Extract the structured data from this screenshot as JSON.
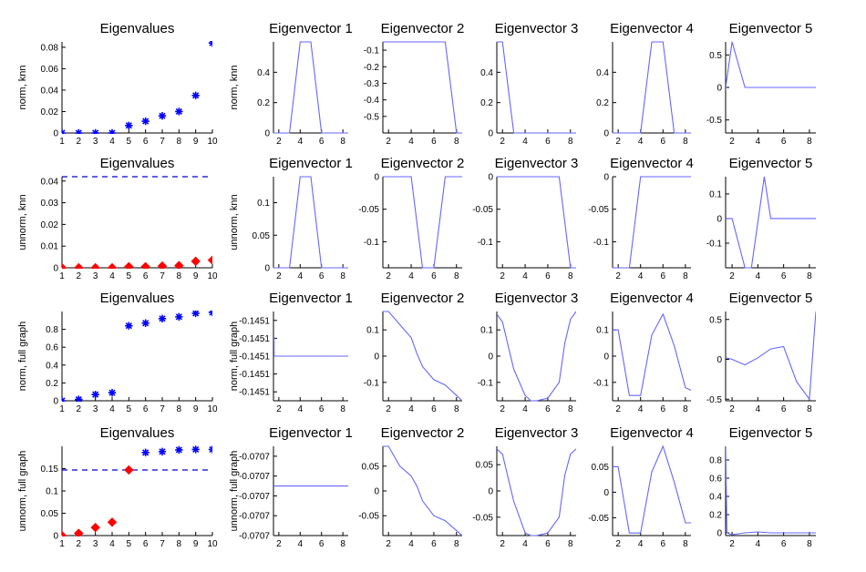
{
  "colors": {
    "eigen_marker": "#0000ff",
    "unnorm_marker": "#ff0000",
    "vector_line": "#6666ff",
    "dashed": "#0000cc",
    "axis": "#000000"
  },
  "chart_data": [
    {
      "type": "scatter",
      "title": "Eigenvalues",
      "ylabel": "norm, knn",
      "xlim": [
        1,
        10
      ],
      "ylim": [
        0,
        0.085
      ],
      "xticks": [
        1,
        2,
        3,
        4,
        5,
        6,
        7,
        8,
        9,
        10
      ],
      "yticks": [
        0,
        0.02,
        0.04,
        0.06,
        0.08
      ],
      "yticklabels": [
        "0",
        "0.02",
        "0.04",
        "0.06",
        "0.08"
      ],
      "series": [
        {
          "marker": "star",
          "color": "blue",
          "x": [
            1,
            2,
            3,
            4,
            5,
            6,
            7,
            8,
            9,
            10
          ],
          "y": [
            0,
            0,
            0,
            0,
            0.007,
            0.011,
            0.016,
            0.02,
            0.035,
            0.084
          ]
        }
      ]
    },
    {
      "type": "line",
      "title": "Eigenvector 1",
      "ylabel": "norm, knn",
      "xlim": [
        1.5,
        8.5
      ],
      "ylim": [
        0,
        0.6
      ],
      "xticks": [
        2,
        4,
        6,
        8
      ],
      "yticks": [
        0,
        0.2,
        0.4
      ],
      "yticklabels": [
        "0",
        "0.2",
        "0.4"
      ],
      "x": [
        1,
        2,
        3,
        4,
        5,
        6,
        7,
        8,
        9,
        10
      ],
      "y": [
        0,
        0,
        0,
        0.6,
        0.6,
        0,
        0,
        0,
        0,
        0
      ]
    },
    {
      "type": "line",
      "title": "Eigenvector 2",
      "xlim": [
        1.5,
        8.5
      ],
      "ylim": [
        -0.6,
        -0.05
      ],
      "xticks": [
        2,
        4,
        6,
        8
      ],
      "yticks": [
        -0.1,
        -0.2,
        -0.3,
        -0.4,
        -0.5
      ],
      "yticklabels": [
        "-0.1",
        "-0.2",
        "-0.3",
        "-0.4",
        "-0.5"
      ],
      "x": [
        1,
        2,
        3,
        4,
        5,
        6,
        7,
        8,
        9,
        10
      ],
      "y": [
        -0.05,
        -0.05,
        -0.05,
        -0.05,
        -0.05,
        -0.05,
        -0.05,
        -0.6,
        -0.6,
        -0.6
      ]
    },
    {
      "type": "line",
      "title": "Eigenvector 3",
      "xlim": [
        1.5,
        8.5
      ],
      "ylim": [
        0,
        0.6
      ],
      "xticks": [
        2,
        4,
        6,
        8
      ],
      "yticks": [
        0,
        0.2,
        0.4
      ],
      "yticklabels": [
        "0",
        "0.2",
        "0.4"
      ],
      "x": [
        1,
        2,
        3,
        4,
        5,
        6,
        7,
        8,
        9,
        10
      ],
      "y": [
        0.6,
        0.6,
        0,
        0,
        0,
        0,
        0,
        0,
        0,
        0
      ]
    },
    {
      "type": "line",
      "title": "Eigenvector 4",
      "xlim": [
        1.5,
        8.5
      ],
      "ylim": [
        0,
        0.6
      ],
      "xticks": [
        2,
        4,
        6,
        8
      ],
      "yticks": [
        0,
        0.2,
        0.4
      ],
      "yticklabels": [
        "0",
        "0.2",
        "0.4"
      ],
      "x": [
        1,
        2,
        3,
        4,
        5,
        6,
        7,
        8,
        9,
        10
      ],
      "y": [
        0,
        0,
        0,
        0,
        0.6,
        0.6,
        0,
        0,
        0,
        0
      ]
    },
    {
      "type": "line",
      "title": "Eigenvector 5",
      "xlim": [
        1.5,
        8.5
      ],
      "ylim": [
        -0.7,
        0.7
      ],
      "xticks": [
        2,
        4,
        6,
        8
      ],
      "yticks": [
        0.5,
        0,
        -0.5
      ],
      "yticklabels": [
        "0.5",
        "0",
        "-0.5"
      ],
      "x": [
        1,
        2,
        3,
        4,
        5,
        6,
        7,
        8,
        9,
        10
      ],
      "y": [
        -0.7,
        0.7,
        0,
        0,
        0,
        0,
        0,
        0,
        0,
        0
      ]
    },
    {
      "type": "scatter",
      "title": "Eigenvalues",
      "ylabel": "unnorm, knn",
      "xlim": [
        1,
        10
      ],
      "ylim": [
        0,
        0.042
      ],
      "xticks": [
        1,
        2,
        3,
        4,
        5,
        6,
        7,
        8,
        9,
        10
      ],
      "yticks": [
        0,
        0.01,
        0.02,
        0.03,
        0.04
      ],
      "yticklabels": [
        "0",
        "0.01",
        "0.02",
        "0.03",
        "0.04"
      ],
      "hline": 0.042,
      "series": [
        {
          "marker": "diamond",
          "color": "red",
          "x": [
            1,
            2,
            3,
            4,
            5,
            6,
            7,
            8,
            9,
            10
          ],
          "y": [
            0,
            0,
            0,
            0,
            0.0005,
            0.0005,
            0.0008,
            0.001,
            0.003,
            0.0035
          ]
        }
      ]
    },
    {
      "type": "line",
      "title": "Eigenvector 1",
      "ylabel": "unnorm, knn",
      "xlim": [
        1.5,
        8.5
      ],
      "ylim": [
        0,
        0.14
      ],
      "xticks": [
        2,
        4,
        6,
        8
      ],
      "yticks": [
        0,
        0.05,
        0.1
      ],
      "yticklabels": [
        "0",
        "0.05",
        "0.1"
      ],
      "x": [
        1,
        2,
        3,
        4,
        5,
        6,
        7,
        8,
        9,
        10
      ],
      "y": [
        0,
        0,
        0,
        0.14,
        0.14,
        0,
        0,
        0,
        0,
        0
      ]
    },
    {
      "type": "line",
      "title": "Eigenvector 2",
      "xlim": [
        1.5,
        8.5
      ],
      "ylim": [
        -0.14,
        0
      ],
      "xticks": [
        2,
        4,
        6,
        8
      ],
      "yticks": [
        0,
        -0.05,
        -0.1
      ],
      "yticklabels": [
        "0",
        "-0.05",
        "-0.1"
      ],
      "x": [
        1,
        2,
        3,
        4,
        5,
        6,
        7,
        8,
        9,
        10
      ],
      "y": [
        0,
        0,
        0,
        0,
        -0.14,
        -0.14,
        0,
        0,
        0,
        0
      ]
    },
    {
      "type": "line",
      "title": "Eigenvector 3",
      "xlim": [
        1.5,
        8.5
      ],
      "ylim": [
        -0.14,
        0
      ],
      "xticks": [
        2,
        4,
        6,
        8
      ],
      "yticks": [
        0,
        -0.05,
        -0.1
      ],
      "yticklabels": [
        "0",
        "-0.05",
        "-0.1"
      ],
      "x": [
        1,
        2,
        3,
        4,
        5,
        6,
        7,
        8,
        9,
        10
      ],
      "y": [
        0,
        0,
        0,
        0,
        0,
        0,
        0,
        -0.14,
        -0.14,
        -0.14
      ]
    },
    {
      "type": "line",
      "title": "Eigenvector 4",
      "xlim": [
        1.5,
        8.5
      ],
      "ylim": [
        -0.14,
        0
      ],
      "xticks": [
        2,
        4,
        6,
        8
      ],
      "yticks": [
        0,
        -0.05,
        -0.1
      ],
      "yticklabels": [
        "0",
        "-0.05",
        "-0.1"
      ],
      "x": [
        1,
        2,
        3,
        4,
        5,
        6,
        7,
        8,
        9,
        10
      ],
      "y": [
        -0.14,
        -0.14,
        -0.14,
        0,
        0,
        0,
        0,
        0,
        0,
        0
      ]
    },
    {
      "type": "line",
      "title": "Eigenvector 5",
      "xlim": [
        1.5,
        8.5
      ],
      "ylim": [
        -0.2,
        0.17
      ],
      "xticks": [
        2,
        4,
        6,
        8
      ],
      "yticks": [
        0.1,
        0,
        -0.1
      ],
      "yticklabels": [
        "0.1",
        "0",
        "-0.1"
      ],
      "x": [
        1,
        2,
        3,
        3.5,
        4.5,
        5,
        6,
        7,
        8,
        9,
        10
      ],
      "y": [
        0,
        0,
        -0.2,
        -0.2,
        0.17,
        0,
        0,
        0,
        0,
        0,
        0
      ]
    },
    {
      "type": "scatter",
      "title": "Eigenvalues",
      "ylabel": "norm, full graph",
      "xlim": [
        1,
        10
      ],
      "ylim": [
        0,
        1
      ],
      "xticks": [
        1,
        2,
        3,
        4,
        5,
        6,
        7,
        8,
        9,
        10
      ],
      "yticks": [
        0,
        0.2,
        0.4,
        0.6,
        0.8
      ],
      "yticklabels": [
        "0",
        "0.2",
        "0.4",
        "0.6",
        "0.8"
      ],
      "series": [
        {
          "marker": "star",
          "color": "blue",
          "x": [
            1,
            2,
            3,
            4,
            5,
            6,
            7,
            8,
            9,
            10
          ],
          "y": [
            0,
            0.015,
            0.07,
            0.09,
            0.84,
            0.87,
            0.92,
            0.94,
            0.98,
            0.99
          ]
        }
      ]
    },
    {
      "type": "line",
      "title": "Eigenvector 1",
      "ylabel": "norm, full graph",
      "xlim": [
        1.5,
        8.5
      ],
      "ylim": [
        -0.14515,
        -0.14505
      ],
      "xticks": [
        2,
        4,
        6,
        8
      ],
      "yticks": [
        -0.14506,
        -0.14508,
        -0.1451,
        -0.14512,
        -0.14514
      ],
      "yticklabels": [
        "-0.1451",
        "-0.1451",
        "-0.1451",
        "-0.1451",
        "-0.1451"
      ],
      "x": [
        1,
        1.55,
        1.56,
        2,
        4,
        6,
        8,
        8.5
      ],
      "y": [
        -0.14508,
        -0.14508,
        -0.1451,
        -0.1451,
        -0.1451,
        -0.1451,
        -0.1451,
        -0.1451
      ]
    },
    {
      "type": "line",
      "title": "Eigenvector 2",
      "xlim": [
        1.5,
        8.5
      ],
      "ylim": [
        -0.17,
        0.17
      ],
      "xticks": [
        2,
        4,
        6,
        8
      ],
      "yticks": [
        0.1,
        0,
        -0.1
      ],
      "yticklabels": [
        "0.1",
        "0",
        "-0.1"
      ],
      "x": [
        1.5,
        2,
        3,
        4,
        4.5,
        5,
        6,
        7,
        8,
        8.5
      ],
      "y": [
        0.17,
        0.17,
        0.12,
        0.07,
        0.01,
        -0.04,
        -0.09,
        -0.11,
        -0.15,
        -0.17
      ]
    },
    {
      "type": "line",
      "title": "Eigenvector 3",
      "xlim": [
        1.5,
        8.5
      ],
      "ylim": [
        -0.17,
        0.17
      ],
      "xticks": [
        2,
        4,
        6,
        8
      ],
      "yticks": [
        0.1,
        0,
        -0.1
      ],
      "yticklabels": [
        "0.1",
        "0",
        "-0.1"
      ],
      "x": [
        1.5,
        2,
        3,
        4,
        4.5,
        5,
        6,
        7,
        7.5,
        8,
        8.5
      ],
      "y": [
        0.16,
        0.13,
        -0.05,
        -0.15,
        -0.17,
        -0.17,
        -0.16,
        -0.1,
        0.05,
        0.14,
        0.17
      ]
    },
    {
      "type": "line",
      "title": "Eigenvector 4",
      "xlim": [
        1.5,
        8.5
      ],
      "ylim": [
        -0.17,
        0.17
      ],
      "xticks": [
        2,
        4,
        6,
        8
      ],
      "yticks": [
        0.1,
        0,
        -0.1
      ],
      "yticklabels": [
        "0.1",
        "0",
        "-0.1"
      ],
      "x": [
        1.5,
        2,
        3,
        4,
        5,
        6,
        7,
        8,
        8.5
      ],
      "y": [
        0.1,
        0.1,
        -0.15,
        -0.15,
        0.08,
        0.16,
        0.04,
        -0.12,
        -0.13
      ]
    },
    {
      "type": "line",
      "title": "Eigenvector 5",
      "xlim": [
        1.5,
        8.5
      ],
      "ylim": [
        -0.52,
        0.6
      ],
      "xticks": [
        2,
        4,
        6,
        8
      ],
      "yticks": [
        0.5,
        0,
        -0.5
      ],
      "yticklabels": [
        "0.5",
        "0",
        "-0.5"
      ],
      "x": [
        1.5,
        2,
        3,
        4,
        5,
        6,
        7,
        8,
        8.5
      ],
      "y": [
        0.02,
        0.0,
        -0.07,
        0.02,
        0.13,
        0.16,
        -0.28,
        -0.5,
        0.6
      ]
    },
    {
      "type": "scatter",
      "title": "Eigenvalues",
      "ylabel": "unnorm, full graph",
      "xlim": [
        1,
        10
      ],
      "ylim": [
        0,
        0.2
      ],
      "xticks": [
        1,
        2,
        3,
        4,
        5,
        6,
        7,
        8,
        9,
        10
      ],
      "yticks": [
        0,
        0.05,
        0.1,
        0.15
      ],
      "yticklabels": [
        "0",
        "0.05",
        "0.1",
        "0.15"
      ],
      "hline": 0.147,
      "series": [
        {
          "marker": "diamond",
          "color": "red",
          "x": [
            1,
            2,
            3,
            4,
            5
          ],
          "y": [
            0,
            0.005,
            0.018,
            0.03,
            0.147
          ]
        },
        {
          "marker": "star",
          "color": "blue",
          "x": [
            6,
            7,
            8,
            9,
            10
          ],
          "y": [
            0.186,
            0.188,
            0.192,
            0.193,
            0.193
          ]
        }
      ]
    },
    {
      "type": "line",
      "title": "Eigenvector 1",
      "ylabel": "unnorm, full graph",
      "xlim": [
        1.5,
        8.5
      ],
      "ylim": [
        -0.07075,
        -0.07066
      ],
      "xticks": [
        2,
        4,
        6,
        8
      ],
      "yticks": [
        -0.07067,
        -0.07069,
        -0.07071,
        -0.07073,
        -0.07075
      ],
      "yticklabels": [
        "-0.0707",
        "-0.0707",
        "-0.0707",
        "-0.0707",
        "-0.0707"
      ],
      "x": [
        1.5,
        8.5
      ],
      "y": [
        -0.0707,
        -0.0707
      ]
    },
    {
      "type": "line",
      "title": "Eigenvector 2",
      "xlim": [
        1.5,
        8.5
      ],
      "ylim": [
        -0.09,
        0.09
      ],
      "xticks": [
        2,
        4,
        6,
        8
      ],
      "yticks": [
        0.05,
        0,
        -0.05
      ],
      "yticklabels": [
        "0.05",
        "0",
        "-0.05"
      ],
      "x": [
        1.5,
        2,
        3,
        4,
        4.5,
        5,
        6,
        7,
        8,
        8.5
      ],
      "y": [
        0.09,
        0.09,
        0.05,
        0.03,
        0.01,
        -0.02,
        -0.05,
        -0.06,
        -0.08,
        -0.09
      ]
    },
    {
      "type": "line",
      "title": "Eigenvector 3",
      "xlim": [
        1.5,
        8.5
      ],
      "ylim": [
        -0.085,
        0.085
      ],
      "xticks": [
        2,
        4,
        6,
        8
      ],
      "yticks": [
        0.05,
        0,
        -0.05
      ],
      "yticklabels": [
        "0.05",
        "0",
        "-0.05"
      ],
      "x": [
        1.5,
        2,
        3,
        4,
        4.5,
        5,
        6,
        7,
        7.5,
        8,
        8.5
      ],
      "y": [
        0.08,
        0.07,
        -0.02,
        -0.08,
        -0.085,
        -0.085,
        -0.08,
        -0.05,
        0.03,
        0.07,
        0.08
      ]
    },
    {
      "type": "line",
      "title": "Eigenvector 4",
      "xlim": [
        1.5,
        8.5
      ],
      "ylim": [
        -0.085,
        0.09
      ],
      "xticks": [
        2,
        4,
        6,
        8
      ],
      "yticks": [
        0.05,
        0,
        -0.05
      ],
      "yticklabels": [
        "0.05",
        "0",
        "-0.05"
      ],
      "x": [
        1.5,
        2,
        3,
        4,
        5,
        6,
        7,
        8,
        8.5
      ],
      "y": [
        0.05,
        0.05,
        -0.08,
        -0.08,
        0.04,
        0.09,
        0.02,
        -0.06,
        -0.06
      ]
    },
    {
      "type": "line",
      "title": "Eigenvector 5",
      "xlim": [
        1.5,
        8.5
      ],
      "ylim": [
        -0.03,
        0.95
      ],
      "xticks": [
        2,
        4,
        6,
        8
      ],
      "yticks": [
        0.8,
        0.6,
        0.4,
        0.2,
        0
      ],
      "yticklabels": [
        "0.8",
        "0.6",
        "0.4",
        "0.2",
        "0"
      ],
      "x": [
        1.5,
        1.6,
        2,
        3,
        4,
        5,
        6,
        7,
        8,
        8.5
      ],
      "y": [
        0.95,
        0.0,
        -0.02,
        0.0,
        0.01,
        0.0,
        0.0,
        0.0,
        0.0,
        0.0
      ]
    }
  ]
}
